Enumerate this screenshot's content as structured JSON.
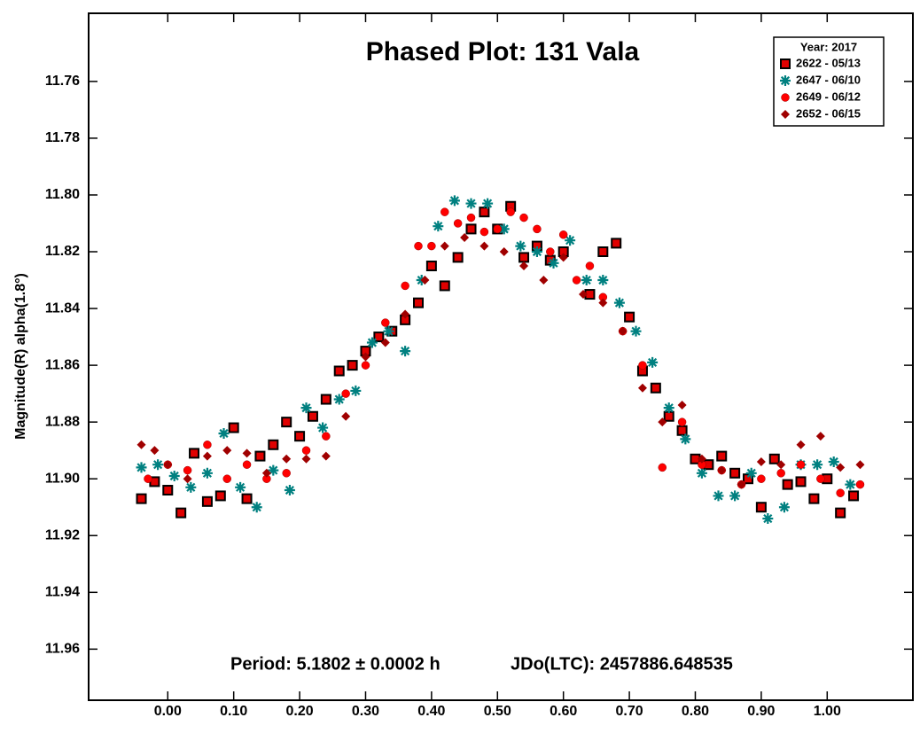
{
  "chart_data": {
    "type": "scatter",
    "title": "Phased Plot: 131 Vala",
    "y_label": "Magnitude(R) alpha(1.8°)",
    "annotations": [
      "Period: 5.1802 ± 0.0002 h",
      "JDo(LTC): 2457886.648535"
    ],
    "legend_title": "Year: 2017",
    "legend": "upper right",
    "xlim": [
      -0.12,
      1.13
    ],
    "ylim": [
      11.736,
      11.978
    ],
    "y_inverted": true,
    "xticks": [
      {
        "value": 0,
        "label": "0.00"
      },
      {
        "value": 0.1,
        "label": "0.10"
      },
      {
        "value": 0.2,
        "label": "0.20"
      },
      {
        "value": 0.3,
        "label": "0.30"
      },
      {
        "value": 0.4,
        "label": "0.40"
      },
      {
        "value": 0.5,
        "label": "0.50"
      },
      {
        "value": 0.6,
        "label": "0.60"
      },
      {
        "value": 0.7,
        "label": "0.70"
      },
      {
        "value": 0.8,
        "label": "0.80"
      },
      {
        "value": 0.9,
        "label": "0.90"
      },
      {
        "value": 1,
        "label": "1.00"
      }
    ],
    "yticks": [
      11.76,
      11.78,
      {
        "value": 11.8,
        "label": "11.80"
      },
      11.82,
      11.84,
      11.86,
      11.88,
      {
        "value": 11.9,
        "label": "11.90"
      },
      11.92,
      11.94,
      11.96
    ],
    "series": [
      {
        "name": "2622 - 05/13",
        "color": "#e00000",
        "marker": "square",
        "x": [
          -0.04,
          -0.02,
          0.0,
          0.02,
          0.04,
          0.06,
          0.08,
          0.1,
          0.12,
          0.14,
          0.16,
          0.18,
          0.2,
          0.22,
          0.24,
          0.26,
          0.28,
          0.3,
          0.32,
          0.34,
          0.36,
          0.38,
          0.4,
          0.42,
          0.44,
          0.46,
          0.48,
          0.5,
          0.52,
          0.54,
          0.56,
          0.58,
          0.6,
          0.64,
          0.66,
          0.68,
          0.7,
          0.72,
          0.74,
          0.76,
          0.78,
          0.8,
          0.82,
          0.84,
          0.86,
          0.88,
          0.9,
          0.92,
          0.94,
          0.96,
          0.98,
          1.0,
          1.02,
          1.04
        ],
        "values": [
          11.907,
          11.901,
          11.904,
          11.912,
          11.891,
          11.908,
          11.906,
          11.882,
          11.907,
          11.892,
          11.888,
          11.88,
          11.885,
          11.878,
          11.872,
          11.862,
          11.86,
          11.855,
          11.85,
          11.848,
          11.844,
          11.838,
          11.825,
          11.832,
          11.822,
          11.812,
          11.806,
          11.812,
          11.804,
          11.822,
          11.818,
          11.823,
          11.82,
          11.835,
          11.82,
          11.817,
          11.843,
          11.862,
          11.868,
          11.878,
          11.883,
          11.893,
          11.895,
          11.892,
          11.898,
          11.9,
          11.91,
          11.893,
          11.902,
          11.901,
          11.907,
          11.9,
          11.912,
          11.906
        ]
      },
      {
        "name": "2647 - 06/10",
        "color": "#008080",
        "marker": "asterisk",
        "x": [
          -0.04,
          -0.015,
          0.01,
          0.035,
          0.06,
          0.085,
          0.11,
          0.135,
          0.16,
          0.185,
          0.21,
          0.235,
          0.26,
          0.285,
          0.31,
          0.335,
          0.36,
          0.385,
          0.41,
          0.435,
          0.46,
          0.485,
          0.51,
          0.535,
          0.56,
          0.585,
          0.61,
          0.635,
          0.66,
          0.685,
          0.71,
          0.735,
          0.76,
          0.785,
          0.81,
          0.835,
          0.86,
          0.885,
          0.91,
          0.935,
          0.96,
          0.985,
          1.01,
          1.035
        ],
        "values": [
          11.896,
          11.895,
          11.899,
          11.903,
          11.898,
          11.884,
          11.903,
          11.91,
          11.897,
          11.904,
          11.875,
          11.882,
          11.872,
          11.869,
          11.852,
          11.848,
          11.855,
          11.83,
          11.811,
          11.802,
          11.803,
          11.803,
          11.812,
          11.818,
          11.82,
          11.824,
          11.816,
          11.83,
          11.83,
          11.838,
          11.848,
          11.859,
          11.875,
          11.886,
          11.898,
          11.906,
          11.906,
          11.898,
          11.914,
          11.91,
          11.895,
          11.895,
          11.894,
          11.902
        ]
      },
      {
        "name": "2649 - 06/12",
        "color": "#ff0000",
        "marker": "circle",
        "x": [
          -0.03,
          0.0,
          0.03,
          0.06,
          0.09,
          0.12,
          0.15,
          0.18,
          0.21,
          0.24,
          0.27,
          0.3,
          0.33,
          0.36,
          0.38,
          0.4,
          0.42,
          0.44,
          0.46,
          0.48,
          0.5,
          0.52,
          0.54,
          0.56,
          0.58,
          0.6,
          0.62,
          0.64,
          0.66,
          0.69,
          0.72,
          0.75,
          0.78,
          0.81,
          0.84,
          0.87,
          0.9,
          0.93,
          0.96,
          0.99,
          1.02,
          1.05
        ],
        "values": [
          11.9,
          11.895,
          11.897,
          11.888,
          11.9,
          11.895,
          11.9,
          11.898,
          11.89,
          11.885,
          11.87,
          11.86,
          11.845,
          11.832,
          11.818,
          11.818,
          11.806,
          11.81,
          11.808,
          11.813,
          11.812,
          11.806,
          11.808,
          11.812,
          11.82,
          11.814,
          11.83,
          11.825,
          11.836,
          11.848,
          11.86,
          11.896,
          11.88,
          11.895,
          11.897,
          11.902,
          11.9,
          11.898,
          11.895,
          11.9,
          11.905,
          11.902
        ]
      },
      {
        "name": "2652 - 06/15",
        "color": "#a00000",
        "marker": "diamond",
        "x": [
          -0.04,
          -0.02,
          0.0,
          0.03,
          0.06,
          0.09,
          0.12,
          0.15,
          0.18,
          0.21,
          0.24,
          0.27,
          0.3,
          0.33,
          0.36,
          0.39,
          0.42,
          0.45,
          0.48,
          0.51,
          0.54,
          0.57,
          0.6,
          0.63,
          0.66,
          0.69,
          0.72,
          0.75,
          0.78,
          0.81,
          0.84,
          0.87,
          0.9,
          0.93,
          0.96,
          0.99,
          1.02,
          1.05
        ],
        "values": [
          11.888,
          11.89,
          11.895,
          11.9,
          11.892,
          11.89,
          11.891,
          11.898,
          11.893,
          11.893,
          11.892,
          11.878,
          11.857,
          11.852,
          11.842,
          11.83,
          11.818,
          11.815,
          11.818,
          11.82,
          11.825,
          11.83,
          11.822,
          11.835,
          11.838,
          11.848,
          11.868,
          11.88,
          11.874,
          11.893,
          11.897,
          11.902,
          11.894,
          11.895,
          11.888,
          11.885,
          11.896,
          11.895
        ]
      }
    ]
  }
}
